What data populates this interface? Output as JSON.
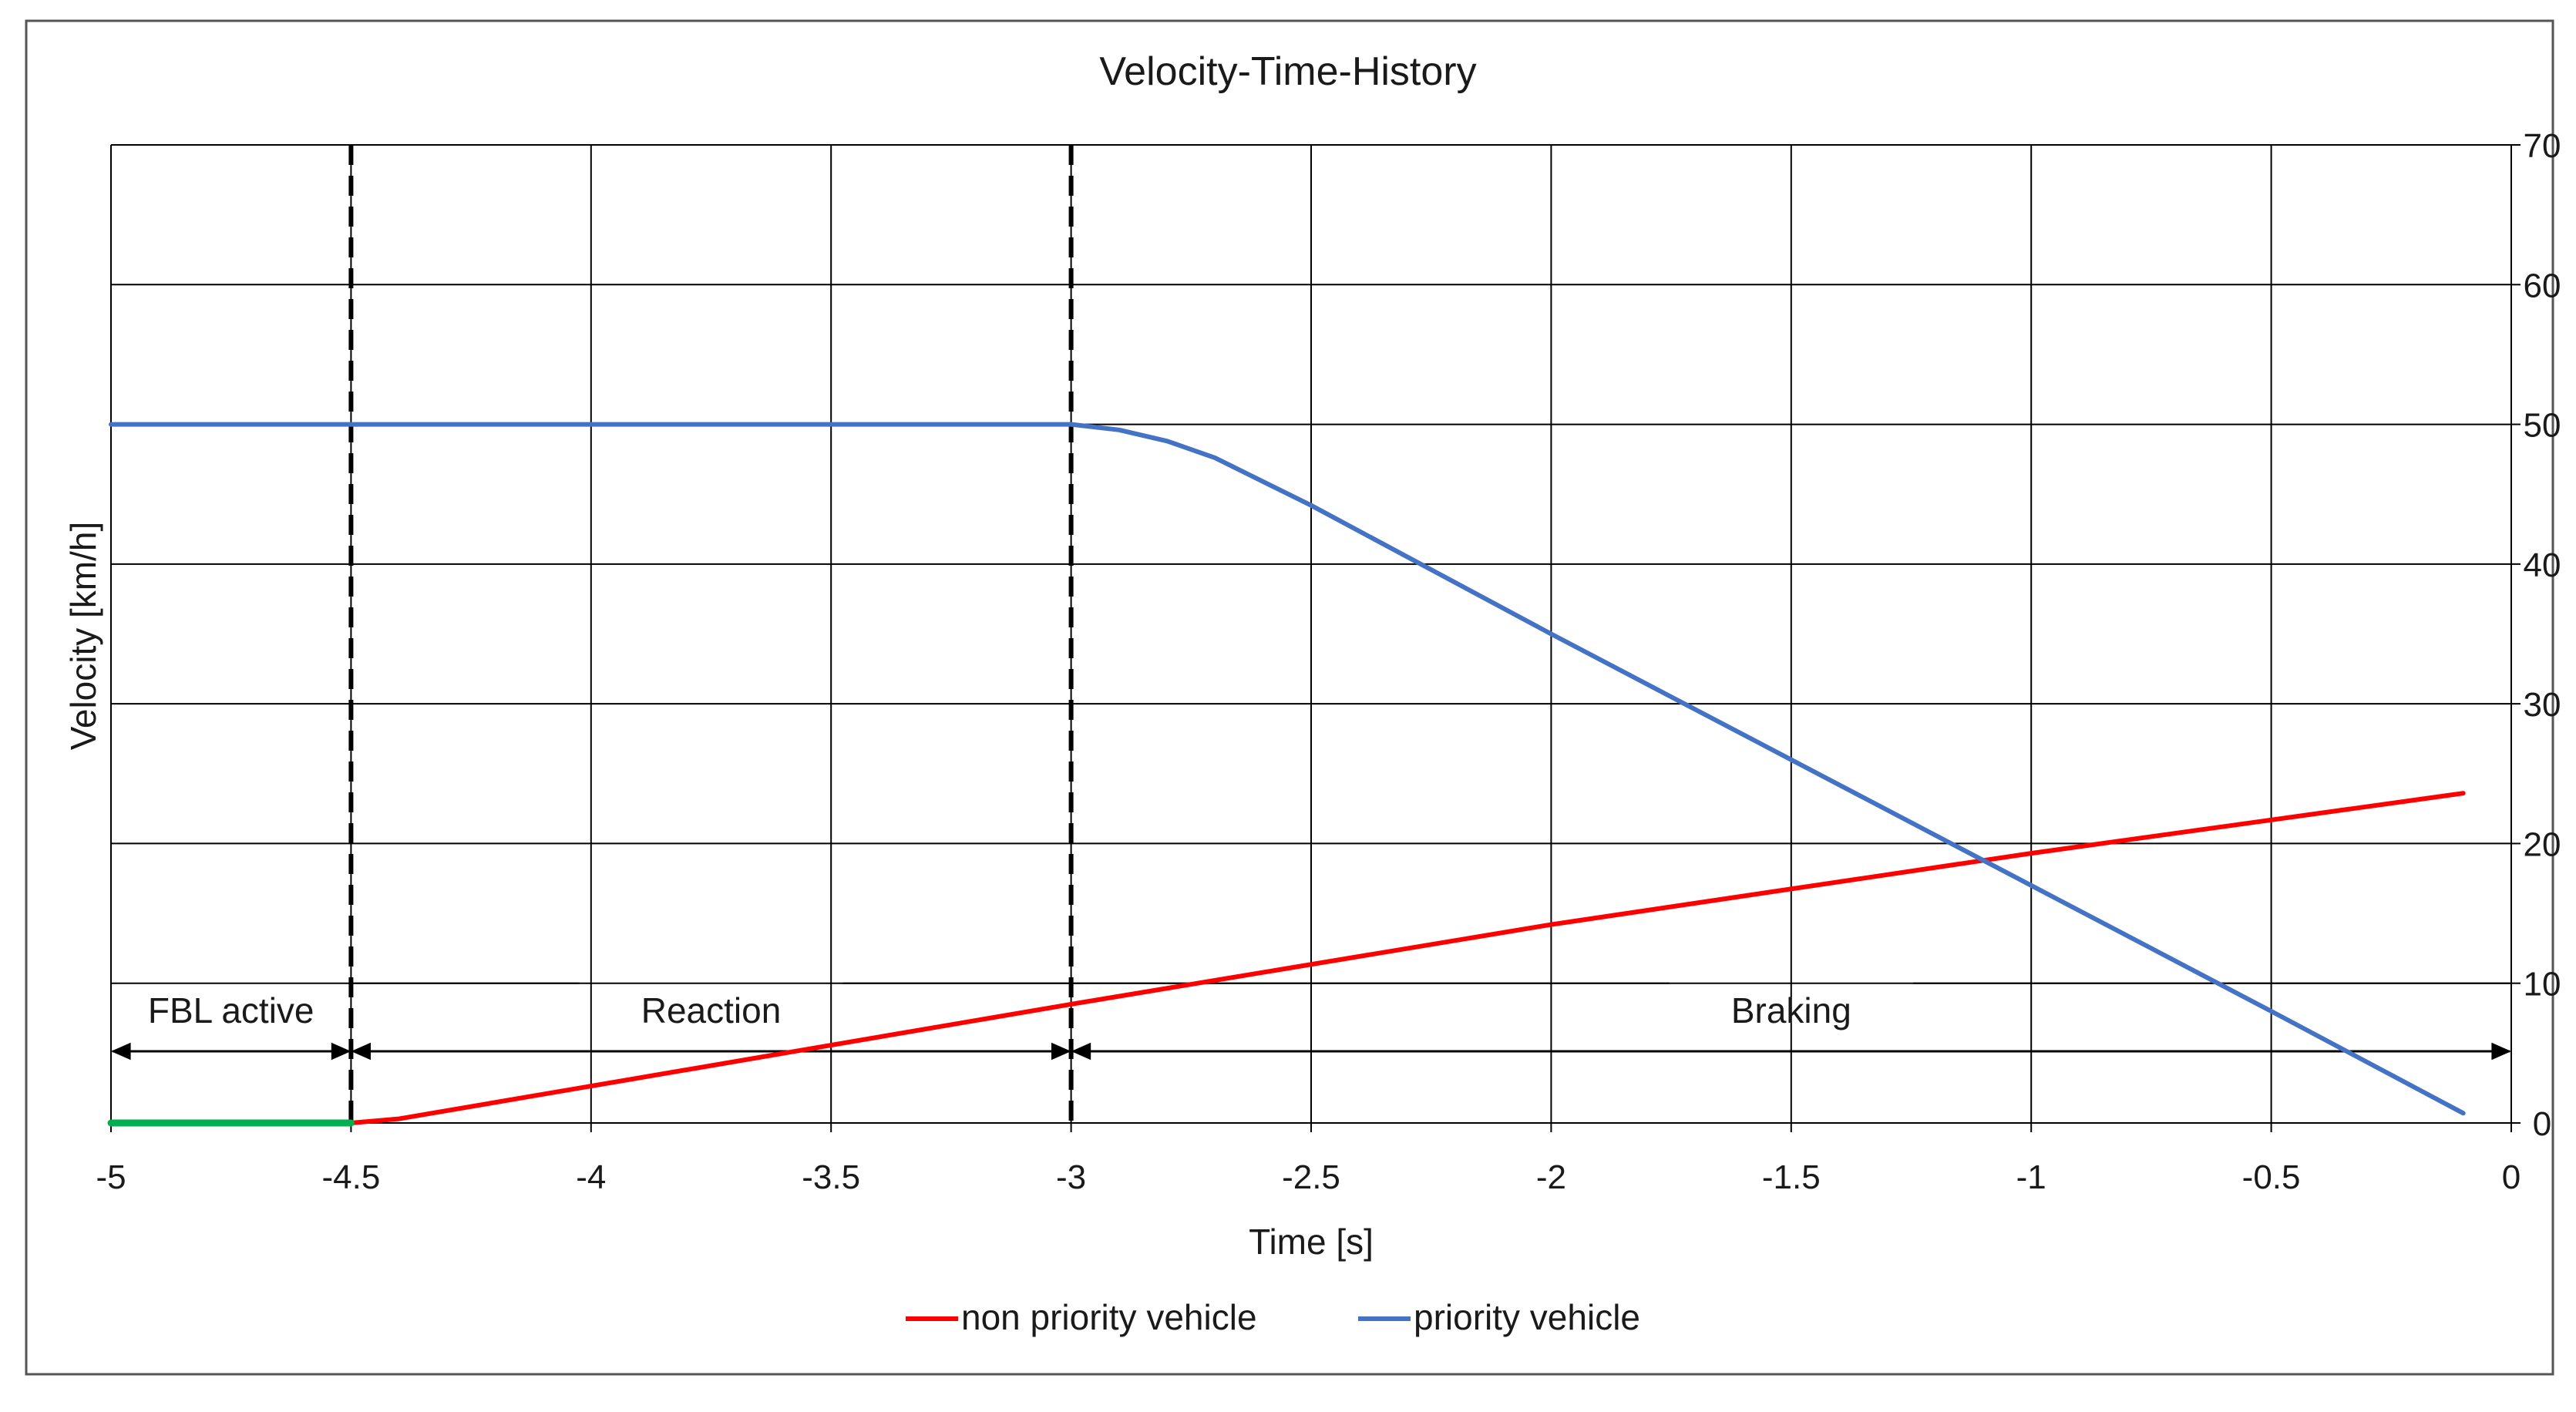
{
  "chart_data": {
    "type": "line",
    "title": "Velocity-Time-History",
    "xlabel": "Time [s]",
    "ylabel": "Velocity [km/h]",
    "xlim": [
      -5,
      0
    ],
    "ylim": [
      0,
      70
    ],
    "x_ticks": [
      -5,
      -4.5,
      -4,
      -3.5,
      -3,
      -2.5,
      -2,
      -1.5,
      -1,
      -0.5,
      0
    ],
    "x_tick_labels": [
      "-5",
      "-4.5",
      "-4",
      "-3.5",
      "-3",
      "-2.5",
      "-2",
      "-1.5",
      "-1",
      "-0.5",
      "0"
    ],
    "y_ticks": [
      0,
      10,
      20,
      30,
      40,
      50,
      60,
      70
    ],
    "y_tick_labels": [
      "0",
      "10",
      "20",
      "30",
      "40",
      "50",
      "60",
      "70"
    ],
    "y_axis_side": "right",
    "grid": true,
    "legend_position": "bottom-center",
    "series": [
      {
        "name": "non priority vehicle",
        "color": "#ff0000",
        "points": [
          [
            -4.5,
            0
          ],
          [
            -4.4,
            0.3
          ],
          [
            -3.0,
            8.5
          ],
          [
            -2.0,
            14.2
          ],
          [
            -1.0,
            19.3
          ],
          [
            -0.1,
            23.6
          ]
        ]
      },
      {
        "name": "priority vehicle",
        "color": "#4472c4",
        "points": [
          [
            -5,
            50
          ],
          [
            -3.0,
            50
          ],
          [
            -2.9,
            49.6
          ],
          [
            -2.8,
            48.8
          ],
          [
            -2.7,
            47.6
          ],
          [
            -2.5,
            44.2
          ],
          [
            -2.0,
            35.0
          ],
          [
            -1.5,
            26.0
          ],
          [
            -1.0,
            17.0
          ],
          [
            -0.5,
            8.0
          ],
          [
            -0.1,
            0.7
          ]
        ]
      },
      {
        "name": "FBL active",
        "color": "#00b050",
        "show_in_legend": false,
        "points": [
          [
            -5,
            0
          ],
          [
            -4.5,
            0
          ]
        ]
      }
    ],
    "markers": [
      {
        "x": -4.5,
        "style": "dashed"
      },
      {
        "x": -3.0,
        "style": "dashed"
      }
    ],
    "phases": [
      {
        "label": "FBL active",
        "from": -5,
        "to": -4.5
      },
      {
        "label": "Reaction",
        "from": -4.5,
        "to": -3.0
      },
      {
        "label": "Braking",
        "from": -3.0,
        "to": 0
      }
    ]
  }
}
